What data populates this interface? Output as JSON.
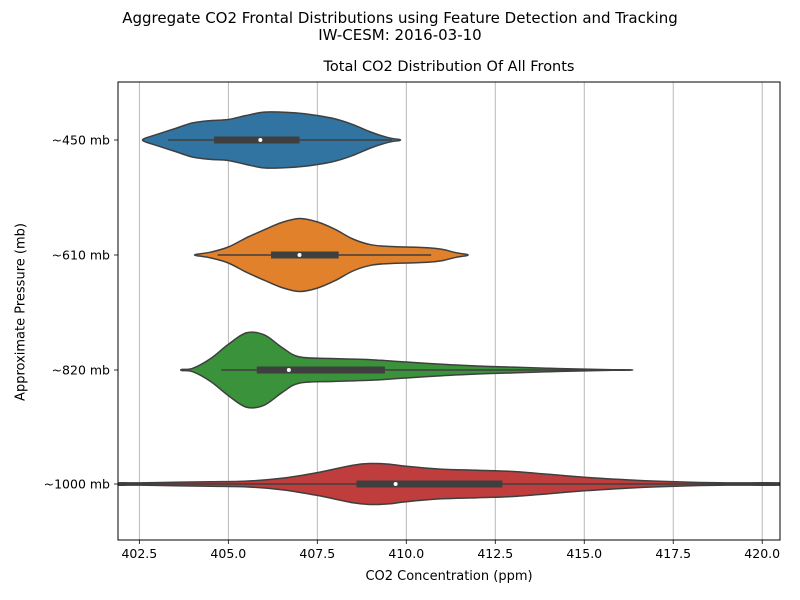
{
  "figure": {
    "suptitle_line1": "Aggregate CO2 Frontal Distributions using Feature Detection and Tracking",
    "suptitle_line2": "IW-CESM: 2016-03-10"
  },
  "chart_data": {
    "type": "violin",
    "orientation": "horizontal",
    "title": "Total CO2 Distribution Of All Fronts",
    "xlabel": "CO2 Concentration (ppm)",
    "ylabel": "Approximate Pressure (mb)",
    "xlim": [
      401.9,
      420.5
    ],
    "xticks": [
      "402.5",
      "405.0",
      "407.5",
      "410.0",
      "412.5",
      "415.0",
      "417.5",
      "420.0"
    ],
    "grid": "vertical",
    "legend": "none",
    "categories": [
      "~450 mb",
      "~610 mb",
      "~820 mb",
      "~1000 mb"
    ],
    "colors": [
      "#3274a1",
      "#e1812c",
      "#3a923a",
      "#c03d3e"
    ],
    "series": [
      {
        "category": "~450 mb",
        "color": "#3274a1",
        "whisker": [
          403.3,
          409.6
        ],
        "q1": 404.6,
        "median": 405.9,
        "q3": 407.0,
        "profile": [
          [
            402.6,
            0.01
          ],
          [
            402.7,
            0.04
          ],
          [
            403.0,
            0.1
          ],
          [
            403.5,
            0.2
          ],
          [
            404.0,
            0.3
          ],
          [
            404.5,
            0.34
          ],
          [
            405.0,
            0.36
          ],
          [
            405.5,
            0.43
          ],
          [
            406.0,
            0.49
          ],
          [
            406.5,
            0.49
          ],
          [
            407.0,
            0.47
          ],
          [
            407.5,
            0.43
          ],
          [
            408.0,
            0.37
          ],
          [
            408.5,
            0.27
          ],
          [
            409.0,
            0.14
          ],
          [
            409.5,
            0.04
          ],
          [
            409.8,
            0.01
          ]
        ]
      },
      {
        "category": "~610 mb",
        "color": "#e1812c",
        "whisker": [
          404.7,
          410.7
        ],
        "q1": 406.2,
        "median": 407.0,
        "q3": 408.1,
        "profile": [
          [
            404.1,
            0.01
          ],
          [
            404.5,
            0.05
          ],
          [
            405.0,
            0.14
          ],
          [
            405.5,
            0.3
          ],
          [
            406.0,
            0.44
          ],
          [
            406.5,
            0.57
          ],
          [
            407.0,
            0.64
          ],
          [
            407.5,
            0.58
          ],
          [
            408.0,
            0.45
          ],
          [
            408.5,
            0.28
          ],
          [
            409.0,
            0.18
          ],
          [
            409.5,
            0.15
          ],
          [
            410.0,
            0.14
          ],
          [
            410.5,
            0.13
          ],
          [
            411.0,
            0.1
          ],
          [
            411.4,
            0.04
          ],
          [
            411.7,
            0.01
          ]
        ]
      },
      {
        "category": "~820 mb",
        "color": "#3a923a",
        "whisker": [
          404.8,
          416.3
        ],
        "q1": 405.8,
        "median": 406.7,
        "q3": 409.4,
        "profile": [
          [
            403.7,
            0.01
          ],
          [
            404.0,
            0.03
          ],
          [
            404.5,
            0.2
          ],
          [
            405.0,
            0.45
          ],
          [
            405.5,
            0.65
          ],
          [
            406.0,
            0.62
          ],
          [
            406.5,
            0.4
          ],
          [
            407.0,
            0.23
          ],
          [
            408.0,
            0.2
          ],
          [
            409.0,
            0.18
          ],
          [
            410.0,
            0.14
          ],
          [
            411.0,
            0.1
          ],
          [
            412.0,
            0.07
          ],
          [
            413.0,
            0.05
          ],
          [
            414.0,
            0.03
          ],
          [
            415.0,
            0.015
          ],
          [
            415.8,
            0.006
          ],
          [
            416.3,
            0.002
          ]
        ]
      },
      {
        "category": "~1000 mb",
        "color": "#c03d3e",
        "whisker": [
          401.9,
          420.5
        ],
        "q1": 408.6,
        "median": 409.7,
        "q3": 412.7,
        "profile": [
          [
            401.9,
            0.02
          ],
          [
            402.5,
            0.02
          ],
          [
            403.5,
            0.03
          ],
          [
            404.5,
            0.04
          ],
          [
            405.5,
            0.05
          ],
          [
            406.5,
            0.1
          ],
          [
            407.5,
            0.2
          ],
          [
            408.5,
            0.33
          ],
          [
            409.0,
            0.36
          ],
          [
            409.5,
            0.35
          ],
          [
            410.0,
            0.31
          ],
          [
            411.0,
            0.26
          ],
          [
            412.0,
            0.24
          ],
          [
            413.0,
            0.22
          ],
          [
            414.0,
            0.17
          ],
          [
            415.0,
            0.12
          ],
          [
            416.0,
            0.08
          ],
          [
            417.0,
            0.05
          ],
          [
            418.0,
            0.03
          ],
          [
            419.0,
            0.02
          ],
          [
            420.5,
            0.02
          ]
        ]
      }
    ]
  }
}
